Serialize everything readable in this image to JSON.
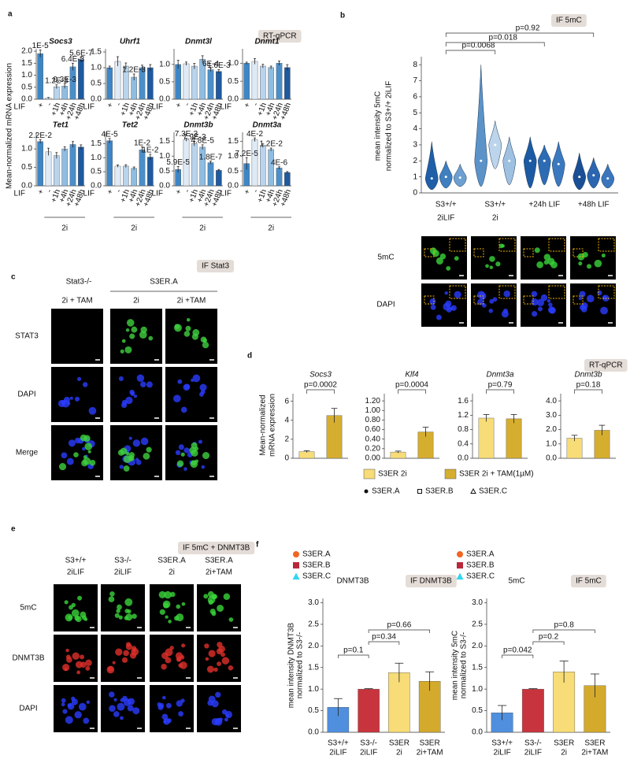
{
  "panels": {
    "a": {
      "letter": "a",
      "tag": "RT-qPCR"
    },
    "b": {
      "letter": "b",
      "tag": "IF 5mC",
      "rows": [
        "5mC",
        "DAPI"
      ]
    },
    "c": {
      "letter": "c",
      "tag": "IF Stat3",
      "headers": [
        "Stat3-/-",
        "S3ER.A"
      ],
      "columns": [
        "2i + TAM",
        "2i",
        "2i +TAM"
      ],
      "rows": [
        "STAT3",
        "DAPI",
        "Merge"
      ]
    },
    "d": {
      "letter": "d",
      "tag": "RT-qPCR"
    },
    "e": {
      "letter": "e",
      "tag": "IF 5mC + DNMT3B",
      "columns": [
        [
          "S3+/+",
          "2iLIF"
        ],
        [
          "S3-/-",
          "2iLIF"
        ],
        [
          "S3ER.A",
          "2i"
        ],
        [
          "S3ER.A",
          "2i+TAM"
        ]
      ],
      "rows": [
        "5mC",
        "DNMT3B",
        "DAPI"
      ]
    },
    "f": {
      "letter": "f"
    }
  },
  "chart_data": [
    {
      "type": "bar",
      "ylabel": "Mean-normalized mRNA expression",
      "axis_label": "LIF",
      "group_label": "2i",
      "categories": [
        "+",
        "-",
        "+1h",
        "+4h",
        "+24h",
        "+48h"
      ],
      "colors": [
        "#3d86c6",
        "#deeaf6",
        "#b9d4ec",
        "#8fbde2",
        "#4b8fca",
        "#1e5aa0"
      ],
      "panels": [
        {
          "title": "Socs3",
          "values": [
            1.9,
            0.05,
            0.52,
            0.55,
            1.35,
            1.65
          ],
          "errors": [
            0.15,
            0.02,
            0.08,
            0.1,
            0.15,
            0.1
          ],
          "pvalues": [
            "1E-5",
            null,
            "1.2E-3",
            "0.3E-3",
            "6.4E-3",
            "5.6E-7"
          ],
          "ylim": [
            0,
            2.1
          ],
          "yticks": [
            {
              "value": 0,
              "label": "0.0"
            },
            0.5,
            {
              "value": 1,
              "label": "1.0"
            },
            1.5,
            {
              "value": 2,
              "label": "2.0"
            }
          ]
        },
        {
          "title": "Uhrf1",
          "values": [
            1.0,
            1.2,
            1.05,
            0.7,
            1.0,
            1.0
          ],
          "errors": [
            0.05,
            0.15,
            0.1,
            0.1,
            0.08,
            0.1
          ],
          "pvalues": [
            null,
            null,
            null,
            "1.2E-3",
            null,
            null
          ],
          "ylim": [
            0,
            1.6
          ],
          "yticks": [
            {
              "value": 0,
              "label": "0.0"
            },
            0.5,
            {
              "value": 1,
              "label": "1.0"
            },
            1.5
          ]
        },
        {
          "title": "Dnmt3l",
          "values": [
            1.0,
            1.02,
            0.95,
            1.15,
            0.85,
            0.8
          ],
          "errors": [
            0.12,
            0.05,
            0.08,
            0.1,
            0.05,
            0.05
          ],
          "pvalues": [
            null,
            null,
            null,
            null,
            "6E-4",
            "1.6E-3"
          ],
          "ylim": [
            0,
            1.45
          ],
          "yticks": [
            {
              "value": 0,
              "label": "0.0"
            },
            0.5,
            {
              "value": 1,
              "label": "1.0"
            }
          ]
        },
        {
          "title": "Dnmt1",
          "values": [
            1.0,
            1.05,
            0.92,
            0.88,
            1.0,
            0.88
          ],
          "errors": [
            0.03,
            0.08,
            0.05,
            0.04,
            0.06,
            0.08
          ],
          "ylim": [
            0,
            1.4
          ],
          "yticks": [
            {
              "value": 0,
              "label": "0.0"
            },
            0.5,
            {
              "value": 1,
              "label": "1.0"
            }
          ]
        },
        {
          "title": "Tet1",
          "values": [
            1.2,
            0.92,
            0.82,
            1.0,
            1.12,
            1.05
          ],
          "errors": [
            0.05,
            0.1,
            0.08,
            0.06,
            0.08,
            0.06
          ],
          "pvalues": [
            "2.2E-2",
            null,
            null,
            null,
            null,
            null
          ],
          "ylim": [
            0,
            1.45
          ],
          "yticks": [
            {
              "value": 0,
              "label": "0.0"
            },
            0.5,
            {
              "value": 1,
              "label": "1.0"
            }
          ]
        },
        {
          "title": "Tet2",
          "values": [
            1.6,
            0.7,
            0.7,
            0.62,
            1.28,
            1.02
          ],
          "errors": [
            0.08,
            0.04,
            0.05,
            0.05,
            0.1,
            0.1
          ],
          "pvalues": [
            "4E-5",
            null,
            null,
            null,
            "1E-2",
            "1E-2"
          ],
          "ylim": [
            0,
            1.9
          ],
          "yticks": [
            {
              "value": 0,
              "label": "0.0"
            },
            0.5,
            {
              "value": 1,
              "label": "1.0"
            },
            1.5
          ]
        },
        {
          "title": "Dnmt3b",
          "values": [
            0.55,
            1.55,
            1.42,
            1.3,
            0.78,
            0.52
          ],
          "errors": [
            0.1,
            0.05,
            0.08,
            0.08,
            0.05,
            0.03
          ],
          "pvalues": [
            "5.9E-5",
            "7.3E-3",
            "7.9E-3",
            "4.8E-5",
            "1.8E-7",
            null
          ],
          "ylim": [
            0,
            1.8
          ],
          "yticks": [
            {
              "value": 0,
              "label": "0.0"
            },
            0.5,
            {
              "value": 1,
              "label": "1.0"
            },
            1.5
          ]
        },
        {
          "title": "Dnmt3a",
          "values": [
            0.75,
            1.55,
            1.35,
            1.22,
            0.6,
            0.45
          ],
          "errors": [
            0.2,
            0.06,
            0.06,
            0.05,
            0.04,
            0.03
          ],
          "pvalues": [
            "7.2E-5",
            "4E-2",
            null,
            "1.2E-2",
            "4E-6",
            null
          ],
          "ylim": [
            0,
            1.8
          ],
          "yticks": [
            {
              "value": 0,
              "label": "0.0"
            },
            0.5,
            {
              "value": 1,
              "label": "1.0"
            },
            1.5
          ]
        }
      ]
    },
    {
      "type": "violin",
      "ylabel": [
        "mean intensity 5mC",
        "normalized to S3+/+ 2iLIF"
      ],
      "categories": [
        [
          "S3+/+",
          "2iLIF"
        ],
        [
          "S3+/+",
          "2i"
        ],
        [
          "+24h LIF"
        ],
        [
          "+48h LIF"
        ]
      ],
      "groups": [
        {
          "colors": [
            "#1f5fa8",
            "#3f7fc0",
            "#6d9fd1"
          ],
          "medians": [
            0.9,
            1.0,
            0.95
          ],
          "lows": [
            0.2,
            0.3,
            0.4
          ],
          "highs": [
            3.2,
            2.0,
            1.8
          ]
        },
        {
          "colors": [
            "#5b93c9",
            "#bcd5ec",
            "#9ec1e2"
          ],
          "medians": [
            2.0,
            3.0,
            2.0
          ],
          "lows": [
            0.4,
            1.5,
            0.5
          ],
          "highs": [
            8.0,
            4.5,
            3.5
          ]
        },
        {
          "colors": [
            "#1c5aa3",
            "#2d6cb4",
            "#3a79bf"
          ],
          "medians": [
            2.0,
            2.0,
            1.8
          ],
          "lows": [
            0.3,
            0.5,
            0.4
          ],
          "highs": [
            3.5,
            3.0,
            3.2
          ]
        },
        {
          "colors": [
            "#1a4f96",
            "#2c66b0",
            "#3b76bd"
          ],
          "medians": [
            1.0,
            1.1,
            0.9
          ],
          "lows": [
            0.2,
            0.3,
            0.3
          ],
          "highs": [
            2.5,
            2.2,
            1.8
          ]
        }
      ],
      "pvalues": [
        "p=0.0068",
        "p=0.018",
        "p=0.92"
      ],
      "ylim": [
        0,
        8.5
      ],
      "yticks": [
        0,
        1,
        2,
        3,
        4,
        5,
        6,
        7,
        8
      ]
    },
    {
      "type": "bar",
      "ylabel": [
        "Mean-normalized",
        "mRNA expression"
      ],
      "series": [
        {
          "name": "S3ER 2i",
          "color": "#f7dc77"
        },
        {
          "name": "S3ER 2i + TAM(1µM)",
          "color": "#d6ae2f"
        }
      ],
      "replicates": [
        "S3ER.A",
        "S3ER.B",
        "S3ER.C"
      ],
      "panels": [
        {
          "title": "Socs3",
          "values": [
            0.7,
            4.5
          ],
          "errors": [
            0.1,
            0.75
          ],
          "pvalue": "p=0.0002",
          "ylim": [
            0,
            6.8
          ],
          "yticks": [
            0,
            2,
            4,
            6
          ]
        },
        {
          "title": "Klf4",
          "values": [
            0.13,
            0.55
          ],
          "errors": [
            0.02,
            0.1
          ],
          "pvalue": "p=0.0004",
          "ylim": [
            0,
            1.35
          ],
          "yticks": [
            {
              "value": 0,
              "label": "0.00"
            },
            {
              "value": 0.2,
              "label": "0.20"
            },
            {
              "value": 0.4,
              "label": "0.40"
            },
            {
              "value": 0.6,
              "label": "0.60"
            },
            {
              "value": 0.8,
              "label": "0.80"
            },
            {
              "value": 1,
              "label": "1.00"
            },
            {
              "value": 1.2,
              "label": "1.20"
            }
          ]
        },
        {
          "title": "Dnmt3a",
          "values": [
            1.12,
            1.1
          ],
          "errors": [
            0.1,
            0.12
          ],
          "pvalue": "p=0.79",
          "ylim": [
            0,
            1.8
          ],
          "yticks": [
            {
              "value": 0,
              "label": "0.0"
            },
            0.4,
            0.8,
            1.2,
            1.6
          ]
        },
        {
          "title": "Dnmt3b",
          "values": [
            1.4,
            1.95
          ],
          "errors": [
            0.2,
            0.35
          ],
          "pvalue": "p=0.18",
          "ylim": [
            0,
            4.5
          ],
          "yticks": [
            {
              "value": 0,
              "label": "0.0"
            },
            {
              "value": 1,
              "label": "1.0"
            },
            {
              "value": 2,
              "label": "2.0"
            },
            {
              "value": 3,
              "label": "3.0"
            },
            {
              "value": 4,
              "label": "4.0"
            }
          ]
        }
      ]
    },
    {
      "type": "bar",
      "title": "DNMT3B",
      "tag": "IF DNMT3B",
      "ylabel": [
        "mean intensity DNMT3B",
        "normalized to S3-/-"
      ],
      "legend": [
        {
          "name": "S3ER.A",
          "color": "#f26522"
        },
        {
          "name": "S3ER.B",
          "color": "#b8283b"
        },
        {
          "name": "S3ER.C",
          "color": "#33d6f0"
        }
      ],
      "categories": [
        [
          "S3+/+",
          "2iLIF"
        ],
        [
          "S3-/-",
          "2iLIF"
        ],
        [
          "S3ER",
          "2i"
        ],
        [
          "S3ER",
          "2i+TAM"
        ]
      ],
      "colors": [
        "#4f8fde",
        "#c8343d",
        "#f7dc77",
        "#d4aa2c"
      ],
      "values": [
        0.58,
        1.0,
        1.38,
        1.18
      ],
      "errors": [
        0.2,
        0.01,
        0.22,
        0.22
      ],
      "pvalues": [
        "p=0.1",
        "p=0.34",
        "p=0.66"
      ],
      "ylim": [
        0,
        3.1
      ],
      "yticks": [
        {
          "value": 0,
          "label": "0.0"
        },
        0.5,
        {
          "value": 1,
          "label": "1.0"
        },
        1.5,
        {
          "value": 2,
          "label": "2.0"
        },
        2.5,
        {
          "value": 3,
          "label": "3.0"
        }
      ]
    },
    {
      "type": "bar",
      "title": "5mC",
      "tag": "IF 5mC",
      "ylabel": [
        "mean intensity 5mC",
        "normalized to S3-/-"
      ],
      "legend": [
        {
          "name": "S3ER.A",
          "color": "#f26522"
        },
        {
          "name": "S3ER.B",
          "color": "#b8283b"
        },
        {
          "name": "S3ER.C",
          "color": "#33d6f0"
        }
      ],
      "categories": [
        [
          "S3+/+",
          "2iLIF"
        ],
        [
          "S3-/-",
          "2iLIF"
        ],
        [
          "S3ER",
          "2i"
        ],
        [
          "S3ER",
          "2i+TAM"
        ]
      ],
      "colors": [
        "#4f8fde",
        "#c8343d",
        "#f7dc77",
        "#d4aa2c"
      ],
      "values": [
        0.45,
        1.0,
        1.4,
        1.08
      ],
      "errors": [
        0.17,
        0.01,
        0.25,
        0.27
      ],
      "pvalues": [
        "p=0.042",
        "p=0.2",
        "p=0.8"
      ],
      "ylim": [
        0,
        3.1
      ],
      "yticks": [
        {
          "value": 0,
          "label": "0.0"
        },
        0.5,
        {
          "value": 1,
          "label": "1.0"
        },
        1.5,
        {
          "value": 2,
          "label": "2.0"
        },
        2.5,
        {
          "value": 3,
          "label": "3.0"
        }
      ]
    }
  ]
}
